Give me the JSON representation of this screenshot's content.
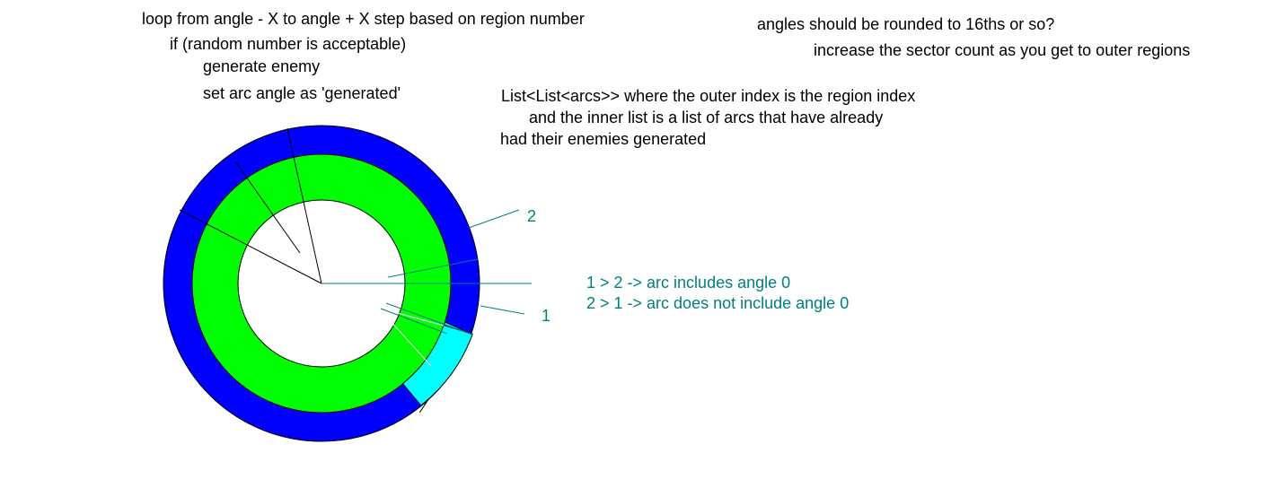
{
  "notes": {
    "loop": "loop from angle - X to angle + X    step based on region number",
    "if_random": "if (random number is acceptable)",
    "generate_enemy": "generate enemy",
    "set_arc": "set arc angle as 'generated'",
    "rounding": "angles should be rounded to 16ths or so?",
    "sector_count": "increase the sector count as you get to outer regions",
    "list_line1": "List<List<arcs>> where the outer index is the region index",
    "list_line2": "and the inner list is a list of arcs that have already",
    "list_line3": "had their enemies generated"
  },
  "labels": {
    "marker_2": "2",
    "marker_1": "1",
    "rule_1": "1 > 2 -> arc includes angle 0",
    "rule_2": "2 > 1 -> arc does not include angle 0"
  },
  "colors": {
    "outer_ring": "#0000ff",
    "middle_ring": "#00ff00",
    "inner_disc": "#ffffff",
    "highlight_arc": "#00ffff",
    "annotation": "#008080",
    "outline": "#000000"
  }
}
